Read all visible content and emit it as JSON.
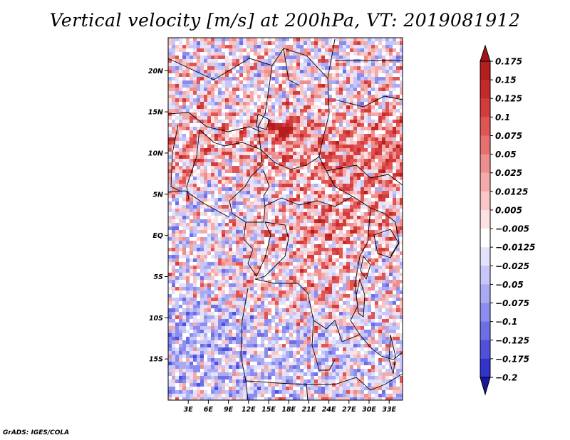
{
  "title": "Vertical velocity [m/s] at 200hPa, VT: 2019081912",
  "credit": "GrADS: IGES/COLA",
  "map": {
    "lon_range": [
      0,
      35
    ],
    "lat_range": [
      -20,
      24
    ],
    "lat_ticks": [
      {
        "value": 20,
        "label": "20N"
      },
      {
        "value": 15,
        "label": "15N"
      },
      {
        "value": 10,
        "label": "10N"
      },
      {
        "value": 5,
        "label": "5N"
      },
      {
        "value": 0,
        "label": "EQ"
      },
      {
        "value": -5,
        "label": "5S"
      },
      {
        "value": -10,
        "label": "10S"
      },
      {
        "value": -15,
        "label": "15S"
      }
    ],
    "lon_ticks": [
      {
        "value": 3,
        "label": "3E"
      },
      {
        "value": 6,
        "label": "6E"
      },
      {
        "value": 9,
        "label": "9E"
      },
      {
        "value": 12,
        "label": "12E"
      },
      {
        "value": 15,
        "label": "15E"
      },
      {
        "value": 18,
        "label": "18E"
      },
      {
        "value": 21,
        "label": "21E"
      },
      {
        "value": 24,
        "label": "24E"
      },
      {
        "value": 27,
        "label": "27E"
      },
      {
        "value": 30,
        "label": "30E"
      },
      {
        "value": 33,
        "label": "33E"
      }
    ]
  },
  "colorbar": {
    "levels": [
      {
        "label": "0.175",
        "color": "#b41e1e"
      },
      {
        "label": "0.15",
        "color": "#c42a2a"
      },
      {
        "label": "0.125",
        "color": "#d43c3c"
      },
      {
        "label": "0.1",
        "color": "#e05454"
      },
      {
        "label": "0.075",
        "color": "#e67070"
      },
      {
        "label": "0.05",
        "color": "#ee8e8e"
      },
      {
        "label": "0.025",
        "color": "#f4aaaa"
      },
      {
        "label": "0.0125",
        "color": "#f8c6c6"
      },
      {
        "label": "0.005",
        "color": "#fce2e2"
      },
      {
        "label": "−0.005",
        "color": "#ffffff"
      },
      {
        "label": "−0.0125",
        "color": "#e2e2fc"
      },
      {
        "label": "−0.025",
        "color": "#c6c6f8"
      },
      {
        "label": "−0.05",
        "color": "#aaaaf4"
      },
      {
        "label": "−0.075",
        "color": "#8c8cee"
      },
      {
        "label": "−0.1",
        "color": "#6e6ee6"
      },
      {
        "label": "−0.125",
        "color": "#5050dc"
      },
      {
        "label": "−0.175",
        "color": "#3232cc"
      },
      {
        "label": "−0.2",
        "color": "#2020b4"
      }
    ],
    "top_cap_color": "#a01414",
    "bottom_cap_color": "#18189c"
  }
}
